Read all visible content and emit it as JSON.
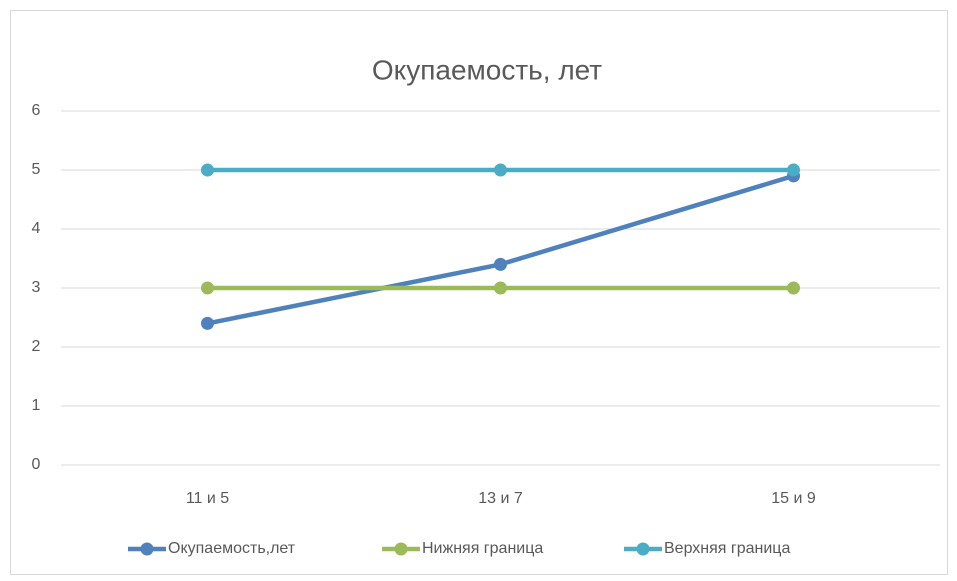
{
  "chart_data": {
    "type": "line",
    "title": "Окупаемость, лет",
    "categories": [
      "11 и 5",
      "13 и 7",
      "15 и 9"
    ],
    "series": [
      {
        "name": "Окупаемость,лет",
        "color": "#4f81bd",
        "values": [
          2.4,
          3.4,
          4.9
        ]
      },
      {
        "name": "Нижняя граница",
        "color": "#9bbb59",
        "values": [
          3,
          3,
          3
        ]
      },
      {
        "name": "Верхняя граница",
        "color": "#4bacc6",
        "values": [
          5,
          5,
          5
        ]
      }
    ],
    "ylim": [
      0,
      6
    ],
    "yticks": [
      0,
      1,
      2,
      3,
      4,
      5,
      6
    ],
    "grid": true,
    "legend": "bottom"
  }
}
